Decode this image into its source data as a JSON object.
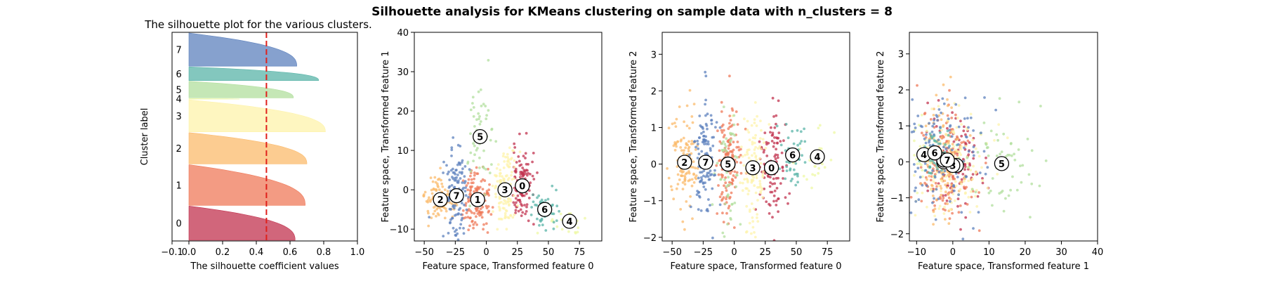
{
  "figure": {
    "suptitle": "Silhouette analysis for KMeans clustering on sample data with n_clusters = 8"
  },
  "palette": [
    "#c2334f",
    "#ef7a5a",
    "#fbbb6c",
    "#fdf3ab",
    "#eef8a4",
    "#b2df9e",
    "#59b4a8",
    "#5e82bd"
  ],
  "chart_data": [
    {
      "type": "area",
      "title": "The silhouette plot for the various clusters.",
      "xlabel": "The silhouette coefficient values",
      "ylabel": "Cluster label",
      "xlim": [
        -0.1,
        1.0
      ],
      "xticks": [
        -0.1,
        0.0,
        0.2,
        0.4,
        0.6,
        0.8,
        1.0
      ],
      "xtick_labels": [
        "−0.1",
        "0.0",
        "0.2",
        "0.4",
        "0.6",
        "0.8",
        "1.0"
      ],
      "yticks": [],
      "silhouette_avg": 0.46,
      "clusters": [
        {
          "label": "0",
          "size": 475,
          "max": 0.63,
          "min": 0.0
        },
        {
          "label": "1",
          "size": 565,
          "max": 0.69,
          "min": 0.0
        },
        {
          "label": "2",
          "size": 435,
          "max": 0.7,
          "min": 0.0
        },
        {
          "label": "3",
          "size": 445,
          "max": 0.81,
          "min": 0.0
        },
        {
          "label": "4",
          "size": 8,
          "max": 0.3,
          "min": 0.0
        },
        {
          "label": "5",
          "size": 230,
          "max": 0.62,
          "min": 0.0
        },
        {
          "label": "6",
          "size": 190,
          "max": 0.77,
          "min": 0.0
        },
        {
          "label": "7",
          "size": 460,
          "max": 0.64,
          "min": 0.0
        }
      ]
    },
    {
      "type": "scatter",
      "xlabel": "Feature space, Transformed feature 0",
      "ylabel": "Feature space, Transformed feature 1",
      "xlim": [
        -58,
        93
      ],
      "ylim": [
        -13,
        40
      ],
      "xticks": [
        -50,
        -25,
        0,
        25,
        50,
        75
      ],
      "yticks": [
        -10,
        0,
        10,
        20,
        30,
        40
      ],
      "centers": [
        {
          "label": "0",
          "x": 29,
          "y": 1
        },
        {
          "label": "1",
          "x": -7,
          "y": -2.5
        },
        {
          "label": "2",
          "x": -37,
          "y": -2.5
        },
        {
          "label": "3",
          "x": 15,
          "y": 0
        },
        {
          "label": "4",
          "x": 67,
          "y": -8
        },
        {
          "label": "5",
          "x": -5,
          "y": 13.5
        },
        {
          "label": "6",
          "x": 47,
          "y": -5
        },
        {
          "label": "7",
          "x": -24,
          "y": -1.5
        }
      ]
    },
    {
      "type": "scatter",
      "xlabel": "Feature space, Transformed feature 0",
      "ylabel": "Feature space, Transformed feature 2",
      "xlim": [
        -58,
        93
      ],
      "ylim": [
        -2.1,
        3.6
      ],
      "xticks": [
        -50,
        -25,
        0,
        25,
        50,
        75
      ],
      "yticks": [
        -2,
        -1,
        0,
        1,
        2,
        3
      ],
      "centers": [
        {
          "label": "0",
          "x": 30,
          "y": -0.1
        },
        {
          "label": "1",
          "x": -5,
          "y": 0.0
        },
        {
          "label": "2",
          "x": -40,
          "y": 0.05
        },
        {
          "label": "3",
          "x": 15,
          "y": -0.1
        },
        {
          "label": "4",
          "x": 67,
          "y": 0.2
        },
        {
          "label": "5",
          "x": -5,
          "y": 0.0
        },
        {
          "label": "6",
          "x": 47,
          "y": 0.25
        },
        {
          "label": "7",
          "x": -23,
          "y": 0.05
        }
      ]
    },
    {
      "type": "scatter",
      "xlabel": "Feature space, Transformed feature 1",
      "ylabel": "Feature space, Transformed feature 2",
      "xlim": [
        -12,
        40
      ],
      "ylim": [
        -2.2,
        3.6
      ],
      "xticks": [
        -10,
        0,
        10,
        20,
        30,
        40
      ],
      "yticks": [
        -2,
        -1,
        0,
        1,
        2,
        3
      ],
      "centers": [
        {
          "label": "0",
          "x": 1,
          "y": -0.1
        },
        {
          "label": "1",
          "x": -2.5,
          "y": 0.0
        },
        {
          "label": "2",
          "x": -2.5,
          "y": 0.05
        },
        {
          "label": "3",
          "x": 0,
          "y": -0.1
        },
        {
          "label": "4",
          "x": -8,
          "y": 0.2
        },
        {
          "label": "5",
          "x": 13.5,
          "y": -0.05
        },
        {
          "label": "6",
          "x": -5,
          "y": 0.25
        },
        {
          "label": "7",
          "x": -1.5,
          "y": 0.05
        }
      ]
    }
  ]
}
